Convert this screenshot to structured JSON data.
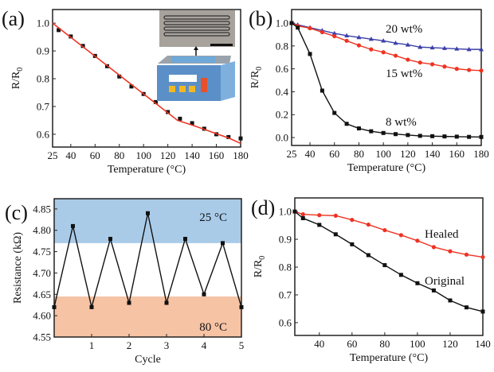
{
  "chart_data": [
    {
      "panel_label": "(a)",
      "type": "scatter",
      "xlabel": "Temperature (°C)",
      "ylabel": "R/R",
      "ylabel_sub": "0",
      "xlim": [
        25,
        180
      ],
      "ylim": [
        0.554,
        1.049
      ],
      "xticks": [
        25,
        40,
        60,
        80,
        100,
        120,
        140,
        160,
        180
      ],
      "yticks": [
        0.6,
        0.7,
        0.8,
        0.9,
        1.0
      ],
      "ytick_labels": [
        "0.6",
        "0.7",
        "0.8",
        "0.9",
        "1.0"
      ],
      "series": [
        {
          "name": "data",
          "color": "#111111",
          "marker": "square",
          "x": [
            30,
            40,
            50,
            60,
            70,
            80,
            90,
            100,
            110,
            120,
            130,
            140,
            150,
            160,
            170,
            180
          ],
          "y": [
            0.975,
            0.952,
            0.918,
            0.882,
            0.845,
            0.808,
            0.772,
            0.745,
            0.716,
            0.68,
            0.656,
            0.64,
            0.62,
            0.6,
            0.59,
            0.585
          ]
        },
        {
          "name": "fit",
          "color": "#ee3322",
          "marker": "none",
          "x": [
            25,
            128,
            140,
            150,
            160,
            170,
            180
          ],
          "y": [
            1.0,
            0.65,
            0.633,
            0.618,
            0.602,
            0.587,
            0.567
          ]
        }
      ],
      "inset": {
        "description_icon": "heating-stage-with-sensor-photo"
      }
    },
    {
      "panel_label": "(b)",
      "type": "line",
      "xlabel": "Temperature (°C)",
      "ylabel": "R/R",
      "ylabel_sub": "0",
      "xlim": [
        25,
        180
      ],
      "ylim": [
        -0.069,
        1.118
      ],
      "xticks": [
        25,
        40,
        60,
        80,
        100,
        120,
        140,
        160,
        180
      ],
      "yticks": [
        0.0,
        0.2,
        0.4,
        0.6,
        0.8,
        1.0
      ],
      "ytick_labels": [
        "0.0",
        "0.2",
        "0.4",
        "0.6",
        "0.8",
        "1.0"
      ],
      "series": [
        {
          "name": "20 wt%",
          "color": "#3b3fa8",
          "marker": "triangle",
          "x": [
            25,
            30,
            40,
            50,
            60,
            70,
            80,
            90,
            100,
            110,
            120,
            130,
            140,
            150,
            160,
            170,
            180
          ],
          "y": [
            1.0,
            0.985,
            0.96,
            0.935,
            0.91,
            0.89,
            0.875,
            0.86,
            0.845,
            0.825,
            0.81,
            0.79,
            0.785,
            0.78,
            0.775,
            0.77,
            0.77
          ]
        },
        {
          "name": "15 wt%",
          "color": "#ee3322",
          "marker": "circle",
          "x": [
            25,
            30,
            40,
            50,
            60,
            70,
            80,
            90,
            100,
            110,
            120,
            130,
            140,
            150,
            160,
            170,
            180
          ],
          "y": [
            1.0,
            0.975,
            0.955,
            0.92,
            0.885,
            0.845,
            0.805,
            0.77,
            0.745,
            0.715,
            0.68,
            0.655,
            0.64,
            0.62,
            0.6,
            0.59,
            0.585
          ]
        },
        {
          "name": "8 wt%",
          "color": "#111111",
          "marker": "square",
          "x": [
            25,
            30,
            40,
            50,
            60,
            70,
            80,
            90,
            100,
            110,
            120,
            130,
            140,
            150,
            160,
            170,
            180
          ],
          "y": [
            1.0,
            0.96,
            0.73,
            0.41,
            0.215,
            0.12,
            0.08,
            0.055,
            0.04,
            0.03,
            0.022,
            0.015,
            0.012,
            0.01,
            0.008,
            0.006,
            0.005
          ]
        }
      ]
    },
    {
      "panel_label": "(c)",
      "type": "line",
      "xlabel": "Cycle",
      "ylabel": "Resistance (kΩ)",
      "ylabel_sub": "",
      "xlim": [
        0,
        5
      ],
      "ylim": [
        4.55,
        4.874
      ],
      "xticks": [
        1,
        2,
        3,
        4,
        5
      ],
      "yticks": [
        4.55,
        4.6,
        4.65,
        4.7,
        4.75,
        4.8,
        4.85
      ],
      "ytick_labels": [
        "4.55",
        "4.60",
        "4.65",
        "4.70",
        "4.75",
        "4.80",
        "4.85"
      ],
      "bands": [
        {
          "label": "25 °C",
          "from": 4.77,
          "to": 4.874,
          "color": "#a9cbe8"
        },
        {
          "label": "80 °C",
          "from": 4.55,
          "to": 4.645,
          "color": "#f6c3a4"
        }
      ],
      "series": [
        {
          "name": "resistance",
          "color": "#111111",
          "marker": "square",
          "x": [
            0,
            0.5,
            1,
            1.5,
            2,
            2.5,
            3,
            3.5,
            4,
            4.5,
            5
          ],
          "y": [
            4.62,
            4.81,
            4.62,
            4.78,
            4.63,
            4.84,
            4.63,
            4.78,
            4.65,
            4.77,
            4.62
          ]
        }
      ]
    },
    {
      "panel_label": "(d)",
      "type": "line",
      "xlabel": "Temperature (°C)",
      "ylabel": "R/R",
      "ylabel_sub": "0",
      "xlim": [
        25,
        140
      ],
      "ylim": [
        0.554,
        1.049
      ],
      "xticks": [
        40,
        60,
        80,
        100,
        120,
        140
      ],
      "yticks": [
        0.6,
        0.7,
        0.8,
        0.9,
        1.0
      ],
      "ytick_labels": [
        "0.6",
        "0.7",
        "0.8",
        "0.9",
        "1.0"
      ],
      "series": [
        {
          "name": "Healed",
          "color": "#ee3322",
          "marker": "circle",
          "x": [
            25,
            30,
            40,
            50,
            60,
            70,
            80,
            90,
            100,
            110,
            120,
            130,
            140
          ],
          "y": [
            1.0,
            0.99,
            0.987,
            0.985,
            0.97,
            0.953,
            0.933,
            0.915,
            0.895,
            0.872,
            0.857,
            0.845,
            0.836
          ]
        },
        {
          "name": "Original",
          "color": "#111111",
          "marker": "square",
          "x": [
            25,
            30,
            40,
            50,
            60,
            70,
            80,
            90,
            100,
            110,
            120,
            130,
            140
          ],
          "y": [
            1.0,
            0.976,
            0.952,
            0.918,
            0.882,
            0.843,
            0.807,
            0.772,
            0.742,
            0.716,
            0.68,
            0.655,
            0.64
          ]
        }
      ]
    }
  ]
}
